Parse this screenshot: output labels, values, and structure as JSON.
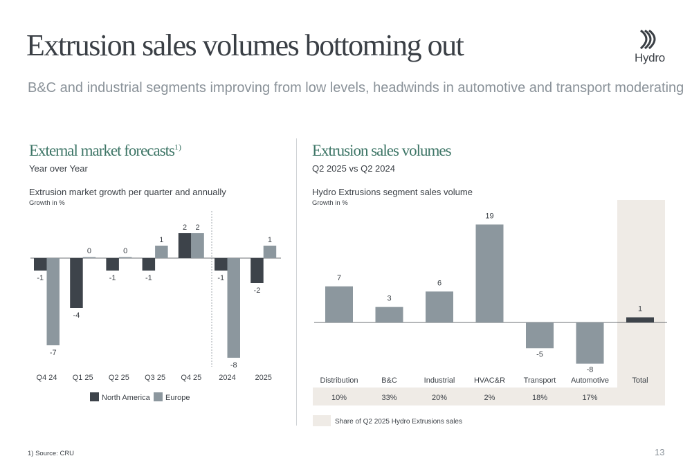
{
  "header": {
    "title": "Extrusion sales volumes bottoming out",
    "subtitle": "B&C and industrial segments improving from low levels, headwinds in automotive and transport moderating",
    "logo_text": "Hydro"
  },
  "left_panel": {
    "heading": "External market forecasts",
    "heading_sup": "1)",
    "subheading": "Year over Year",
    "chart_title": "Extrusion market growth per quarter and annually",
    "chart_unit": "Growth in %"
  },
  "right_panel": {
    "heading": "Extrusion sales volumes",
    "subheading": "Q2 2025 vs Q2 2024",
    "chart_title": "Hydro Extrusions segment sales volume",
    "chart_unit": "Growth in %",
    "share_legend": "Share of Q2 2025 Hydro Extrusions sales"
  },
  "footer": {
    "footnote": "1) Source: CRU",
    "page_number": "13"
  },
  "colors": {
    "north_america": "#3d434a",
    "europe": "#8c979e",
    "segment_bar": "#8c979e",
    "total_bar": "#3d434a",
    "share_band": "#efebe6",
    "heading_green": "#3d7566"
  },
  "chart_data": [
    {
      "type": "bar",
      "categories": [
        "Q4 24",
        "Q1 25",
        "Q2 25",
        "Q3 25",
        "Q4 25",
        "2024",
        "2025"
      ],
      "series": [
        {
          "name": "North America",
          "values": [
            -1,
            -4,
            -1,
            -1,
            2,
            -1,
            -2
          ]
        },
        {
          "name": "Europe",
          "values": [
            -7,
            0,
            0,
            1,
            2,
            -8,
            1
          ]
        }
      ],
      "ylim": [
        -8,
        2
      ],
      "grid": false,
      "legend": "bottom"
    },
    {
      "type": "bar",
      "categories": [
        "Distribution",
        "B&C",
        "Industrial",
        "HVAC&R",
        "Transport",
        "Automotive",
        "Total"
      ],
      "values": [
        7,
        3,
        6,
        19,
        -5,
        -8,
        1
      ],
      "share_of_sales": [
        "10%",
        "33%",
        "20%",
        "2%",
        "18%",
        "17%",
        ""
      ],
      "ylim": [
        -8,
        19
      ],
      "grid": false
    }
  ]
}
